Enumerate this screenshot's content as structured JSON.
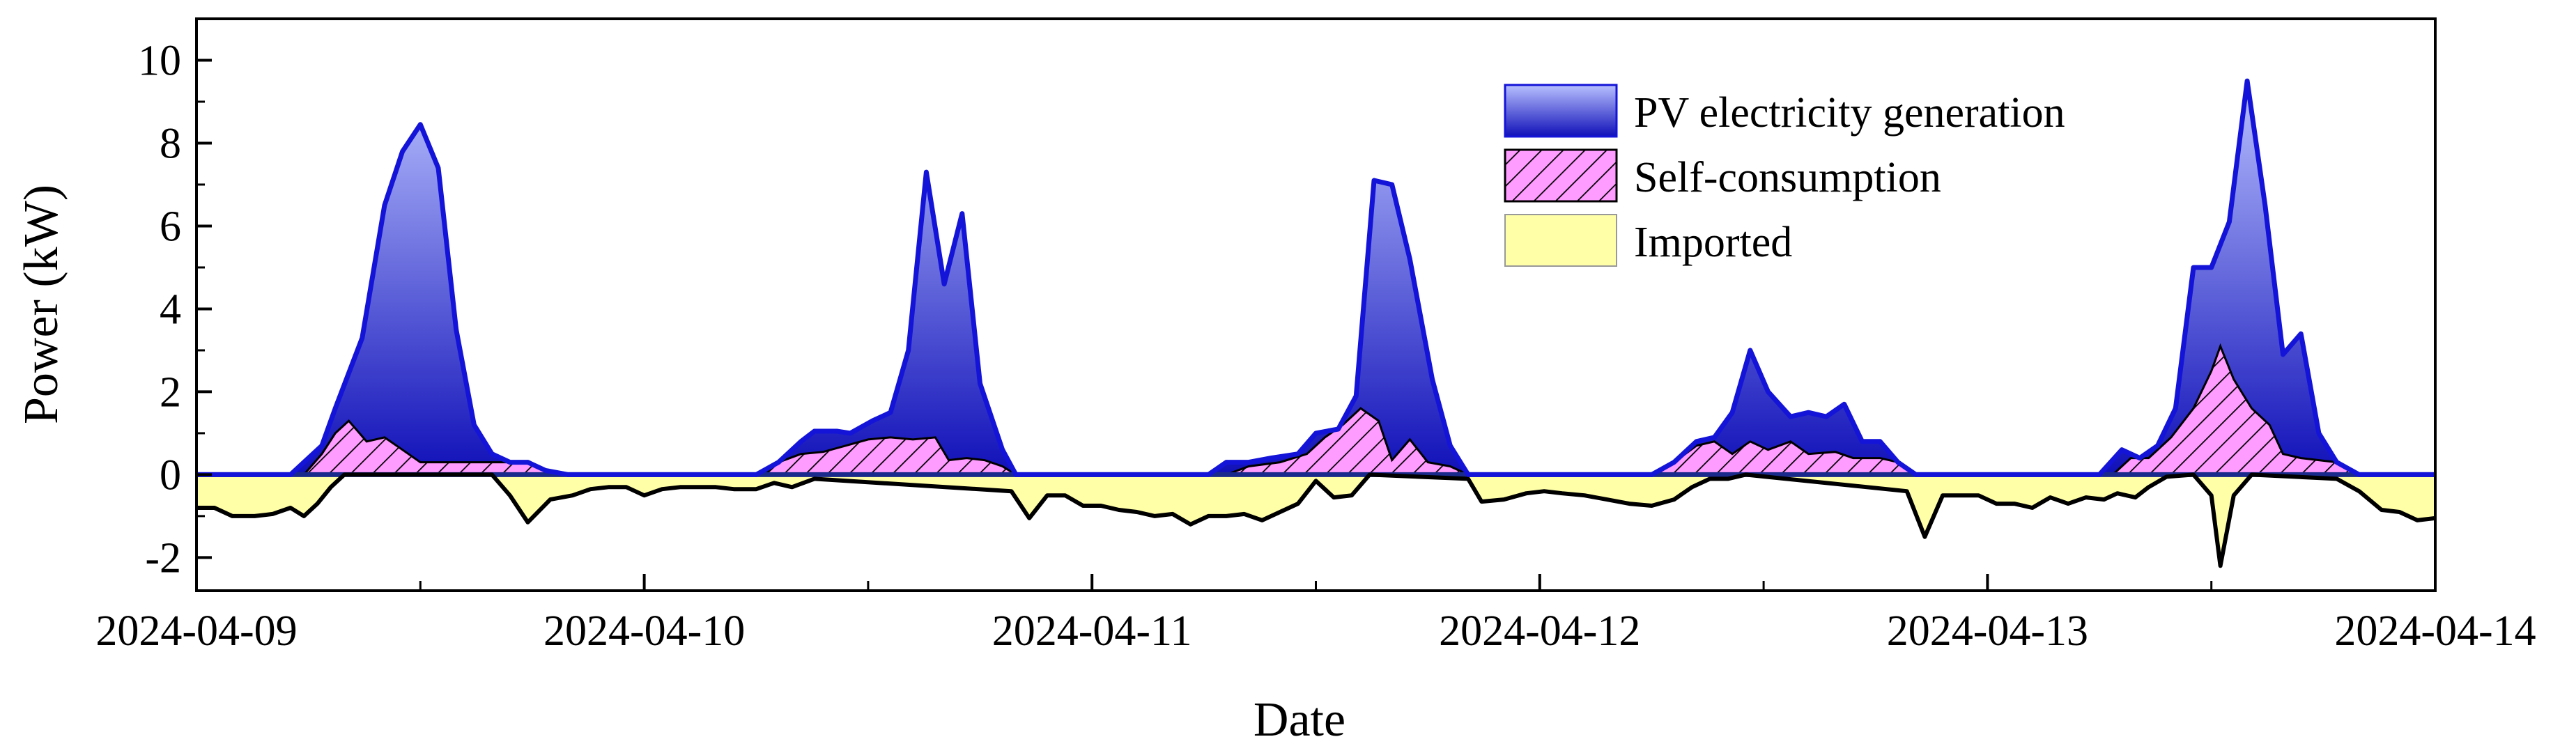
{
  "chart_data": {
    "type": "area",
    "xlabel": "Date",
    "ylabel": "Power (kW)",
    "ylim": [
      -2.8,
      11
    ],
    "xlim": [
      0,
      5
    ],
    "yticks": [
      -2,
      0,
      2,
      4,
      6,
      8,
      10
    ],
    "xticks": [
      {
        "pos": 0,
        "label": "2024-04-09"
      },
      {
        "pos": 1,
        "label": "2024-04-10"
      },
      {
        "pos": 2,
        "label": "2024-04-11"
      },
      {
        "pos": 3,
        "label": "2024-04-12"
      },
      {
        "pos": 4,
        "label": "2024-04-13"
      },
      {
        "pos": 5,
        "label": "2024-04-14"
      }
    ],
    "legend_position": "top-right",
    "colors": {
      "pv_top": "#b8c0ff",
      "pv_bottom": "#1010b8",
      "pv_line": "#1414d8",
      "self_fill": "#ff9cff",
      "self_hatch": "#000000",
      "imported_fill": "#ffffa8",
      "imported_line": "#000000",
      "zero_line": "#1a2a8c"
    },
    "series": [
      {
        "name": "PV electricity generation",
        "points": [
          [
            0,
            0
          ],
          [
            0.21,
            0
          ],
          [
            0.24,
            0.3
          ],
          [
            0.28,
            0.7
          ],
          [
            0.31,
            1.6
          ],
          [
            0.37,
            3.3
          ],
          [
            0.42,
            6.5
          ],
          [
            0.46,
            7.8
          ],
          [
            0.5,
            8.45
          ],
          [
            0.54,
            7.4
          ],
          [
            0.58,
            3.5
          ],
          [
            0.62,
            1.2
          ],
          [
            0.66,
            0.5
          ],
          [
            0.7,
            0.3
          ],
          [
            0.74,
            0.3
          ],
          [
            0.78,
            0.1
          ],
          [
            0.83,
            0
          ],
          [
            1.25,
            0
          ],
          [
            1.3,
            0.3
          ],
          [
            1.35,
            0.8
          ],
          [
            1.38,
            1.05
          ],
          [
            1.43,
            1.05
          ],
          [
            1.46,
            1.0
          ],
          [
            1.51,
            1.3
          ],
          [
            1.55,
            1.5
          ],
          [
            1.59,
            3.0
          ],
          [
            1.63,
            7.3
          ],
          [
            1.67,
            4.6
          ],
          [
            1.71,
            6.3
          ],
          [
            1.75,
            2.2
          ],
          [
            1.8,
            0.6
          ],
          [
            1.83,
            0
          ],
          [
            2.26,
            0
          ],
          [
            2.3,
            0.3
          ],
          [
            2.35,
            0.3
          ],
          [
            2.4,
            0.4
          ],
          [
            2.46,
            0.5
          ],
          [
            2.5,
            1.0
          ],
          [
            2.55,
            1.1
          ],
          [
            2.59,
            1.9
          ],
          [
            2.63,
            7.1
          ],
          [
            2.67,
            7.0
          ],
          [
            2.71,
            5.2
          ],
          [
            2.76,
            2.3
          ],
          [
            2.8,
            0.7
          ],
          [
            2.84,
            0
          ],
          [
            3.25,
            0
          ],
          [
            3.3,
            0.3
          ],
          [
            3.35,
            0.8
          ],
          [
            3.39,
            0.9
          ],
          [
            3.43,
            1.5
          ],
          [
            3.47,
            3.0
          ],
          [
            3.51,
            2.0
          ],
          [
            3.56,
            1.4
          ],
          [
            3.6,
            1.5
          ],
          [
            3.64,
            1.4
          ],
          [
            3.68,
            1.7
          ],
          [
            3.72,
            0.8
          ],
          [
            3.76,
            0.8
          ],
          [
            3.8,
            0.3
          ],
          [
            3.84,
            0
          ],
          [
            4.25,
            0
          ],
          [
            4.3,
            0.6
          ],
          [
            4.34,
            0.4
          ],
          [
            4.38,
            0.7
          ],
          [
            4.42,
            1.6
          ],
          [
            4.46,
            5.0
          ],
          [
            4.5,
            5.0
          ],
          [
            4.54,
            6.1
          ],
          [
            4.58,
            9.5
          ],
          [
            4.62,
            6.5
          ],
          [
            4.66,
            2.9
          ],
          [
            4.7,
            3.4
          ],
          [
            4.74,
            1.0
          ],
          [
            4.78,
            0.3
          ],
          [
            4.83,
            0
          ],
          [
            5,
            0
          ]
        ]
      },
      {
        "name": "Self-consumption",
        "points": [
          [
            0,
            0
          ],
          [
            0.24,
            0
          ],
          [
            0.28,
            0.5
          ],
          [
            0.31,
            1.0
          ],
          [
            0.34,
            1.3
          ],
          [
            0.38,
            0.8
          ],
          [
            0.42,
            0.9
          ],
          [
            0.46,
            0.6
          ],
          [
            0.5,
            0.3
          ],
          [
            0.54,
            0.3
          ],
          [
            0.62,
            0.3
          ],
          [
            0.66,
            0.3
          ],
          [
            0.7,
            0.3
          ],
          [
            0.74,
            0.3
          ],
          [
            0.78,
            0.1
          ],
          [
            0.83,
            0
          ],
          [
            1.27,
            0
          ],
          [
            1.3,
            0.3
          ],
          [
            1.35,
            0.5
          ],
          [
            1.4,
            0.55
          ],
          [
            1.45,
            0.7
          ],
          [
            1.5,
            0.85
          ],
          [
            1.55,
            0.9
          ],
          [
            1.6,
            0.85
          ],
          [
            1.65,
            0.9
          ],
          [
            1.68,
            0.35
          ],
          [
            1.72,
            0.4
          ],
          [
            1.76,
            0.35
          ],
          [
            1.8,
            0.2
          ],
          [
            1.83,
            0
          ],
          [
            2.3,
            0
          ],
          [
            2.35,
            0.2
          ],
          [
            2.42,
            0.3
          ],
          [
            2.48,
            0.5
          ],
          [
            2.52,
            0.9
          ],
          [
            2.56,
            1.2
          ],
          [
            2.6,
            1.6
          ],
          [
            2.64,
            1.3
          ],
          [
            2.67,
            0.35
          ],
          [
            2.71,
            0.85
          ],
          [
            2.75,
            0.3
          ],
          [
            2.8,
            0.2
          ],
          [
            2.84,
            0
          ],
          [
            3.26,
            0
          ],
          [
            3.3,
            0.3
          ],
          [
            3.35,
            0.7
          ],
          [
            3.39,
            0.8
          ],
          [
            3.43,
            0.5
          ],
          [
            3.47,
            0.8
          ],
          [
            3.51,
            0.6
          ],
          [
            3.56,
            0.8
          ],
          [
            3.6,
            0.5
          ],
          [
            3.66,
            0.55
          ],
          [
            3.7,
            0.4
          ],
          [
            3.76,
            0.4
          ],
          [
            3.8,
            0.3
          ],
          [
            3.84,
            0
          ],
          [
            4.28,
            0
          ],
          [
            4.32,
            0.4
          ],
          [
            4.36,
            0.4
          ],
          [
            4.41,
            0.9
          ],
          [
            4.46,
            1.6
          ],
          [
            4.5,
            2.5
          ],
          [
            4.52,
            3.1
          ],
          [
            4.55,
            2.3
          ],
          [
            4.59,
            1.6
          ],
          [
            4.63,
            1.2
          ],
          [
            4.66,
            0.5
          ],
          [
            4.7,
            0.4
          ],
          [
            4.78,
            0.3
          ],
          [
            4.83,
            0
          ],
          [
            5,
            0
          ]
        ]
      },
      {
        "name": "Imported",
        "points": [
          [
            0,
            -0.8
          ],
          [
            0.04,
            -0.8
          ],
          [
            0.08,
            -1.0
          ],
          [
            0.13,
            -1.0
          ],
          [
            0.17,
            -0.95
          ],
          [
            0.21,
            -0.8
          ],
          [
            0.24,
            -1.0
          ],
          [
            0.27,
            -0.7
          ],
          [
            0.3,
            -0.3
          ],
          [
            0.33,
            0
          ],
          [
            0.66,
            0
          ],
          [
            0.7,
            -0.5
          ],
          [
            0.74,
            -1.15
          ],
          [
            0.79,
            -0.6
          ],
          [
            0.84,
            -0.5
          ],
          [
            0.88,
            -0.35
          ],
          [
            0.92,
            -0.3
          ],
          [
            0.96,
            -0.3
          ],
          [
            1.0,
            -0.5
          ],
          [
            1.04,
            -0.35
          ],
          [
            1.08,
            -0.3
          ],
          [
            1.12,
            -0.3
          ],
          [
            1.16,
            -0.3
          ],
          [
            1.2,
            -0.35
          ],
          [
            1.25,
            -0.35
          ],
          [
            1.29,
            -0.2
          ],
          [
            1.33,
            -0.3
          ],
          [
            1.38,
            -0.1
          ],
          [
            1.82,
            -0.4
          ],
          [
            1.86,
            -1.05
          ],
          [
            1.9,
            -0.5
          ],
          [
            1.94,
            -0.5
          ],
          [
            1.98,
            -0.75
          ],
          [
            2.02,
            -0.75
          ],
          [
            2.06,
            -0.85
          ],
          [
            2.1,
            -0.9
          ],
          [
            2.14,
            -1.0
          ],
          [
            2.18,
            -0.95
          ],
          [
            2.22,
            -1.2
          ],
          [
            2.26,
            -1.0
          ],
          [
            2.3,
            -1.0
          ],
          [
            2.34,
            -0.95
          ],
          [
            2.38,
            -1.1
          ],
          [
            2.42,
            -0.9
          ],
          [
            2.46,
            -0.7
          ],
          [
            2.5,
            -0.15
          ],
          [
            2.54,
            -0.55
          ],
          [
            2.58,
            -0.5
          ],
          [
            2.62,
            0
          ],
          [
            2.84,
            -0.1
          ],
          [
            2.87,
            -0.65
          ],
          [
            2.92,
            -0.6
          ],
          [
            2.97,
            -0.45
          ],
          [
            3.01,
            -0.4
          ],
          [
            3.05,
            -0.45
          ],
          [
            3.1,
            -0.5
          ],
          [
            3.15,
            -0.6
          ],
          [
            3.2,
            -0.7
          ],
          [
            3.25,
            -0.75
          ],
          [
            3.3,
            -0.6
          ],
          [
            3.34,
            -0.3
          ],
          [
            3.38,
            -0.1
          ],
          [
            3.42,
            -0.1
          ],
          [
            3.46,
            0
          ],
          [
            3.82,
            -0.4
          ],
          [
            3.86,
            -1.5
          ],
          [
            3.9,
            -0.5
          ],
          [
            3.94,
            -0.5
          ],
          [
            3.98,
            -0.5
          ],
          [
            4.02,
            -0.7
          ],
          [
            4.06,
            -0.7
          ],
          [
            4.1,
            -0.8
          ],
          [
            4.14,
            -0.55
          ],
          [
            4.18,
            -0.7
          ],
          [
            4.22,
            -0.55
          ],
          [
            4.26,
            -0.6
          ],
          [
            4.29,
            -0.45
          ],
          [
            4.33,
            -0.55
          ],
          [
            4.36,
            -0.3
          ],
          [
            4.4,
            -0.05
          ],
          [
            4.46,
            0
          ],
          [
            4.5,
            -0.5
          ],
          [
            4.52,
            -2.2
          ],
          [
            4.55,
            -0.5
          ],
          [
            4.59,
            0
          ],
          [
            4.78,
            -0.1
          ],
          [
            4.83,
            -0.4
          ],
          [
            4.88,
            -0.85
          ],
          [
            4.92,
            -0.9
          ],
          [
            4.96,
            -1.1
          ],
          [
            5,
            -1.05
          ]
        ]
      }
    ]
  }
}
